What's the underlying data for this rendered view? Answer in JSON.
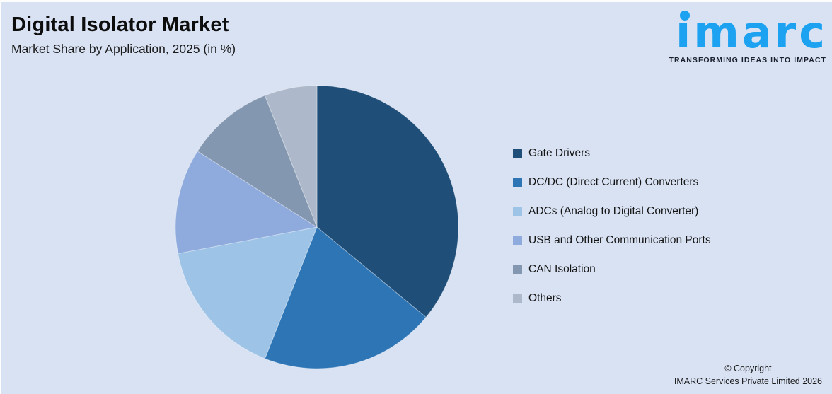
{
  "canvas": {
    "background": "#D9E2F3",
    "edge_strip": "#FDFDFD"
  },
  "header": {
    "title": "Digital Isolator Market",
    "subtitle": "Market Share by Application, 2025 (in %)"
  },
  "logo": {
    "wordmark": "imarc",
    "tagline": "TRANSFORMING IDEAS INTO IMPACT",
    "brand_color": "#1CA2F0",
    "tagline_color": "#181E2B"
  },
  "chart_data": {
    "type": "pie",
    "title": "Digital Isolator Market",
    "subtitle": "Market Share by Application, 2025 (in %)",
    "unit": "%",
    "direction": "clockwise",
    "start_angle_deg": 0,
    "legend_position": "right",
    "categories": [
      "Gate Drivers",
      "DC/DC (Direct Current) Converters",
      "ADCs (Analog to Digital Converter)",
      "USB and Other Communication Ports",
      "CAN Isolation",
      "Others"
    ],
    "values": [
      36,
      20,
      16,
      12,
      10,
      6
    ],
    "colors": [
      "#1F4E79",
      "#2E75B6",
      "#9DC3E6",
      "#8FAADC",
      "#8497B0",
      "#ADB9CA"
    ]
  },
  "footer": {
    "line1": "© Copyright",
    "line2": "IMARC Services Private Limited 2026"
  }
}
